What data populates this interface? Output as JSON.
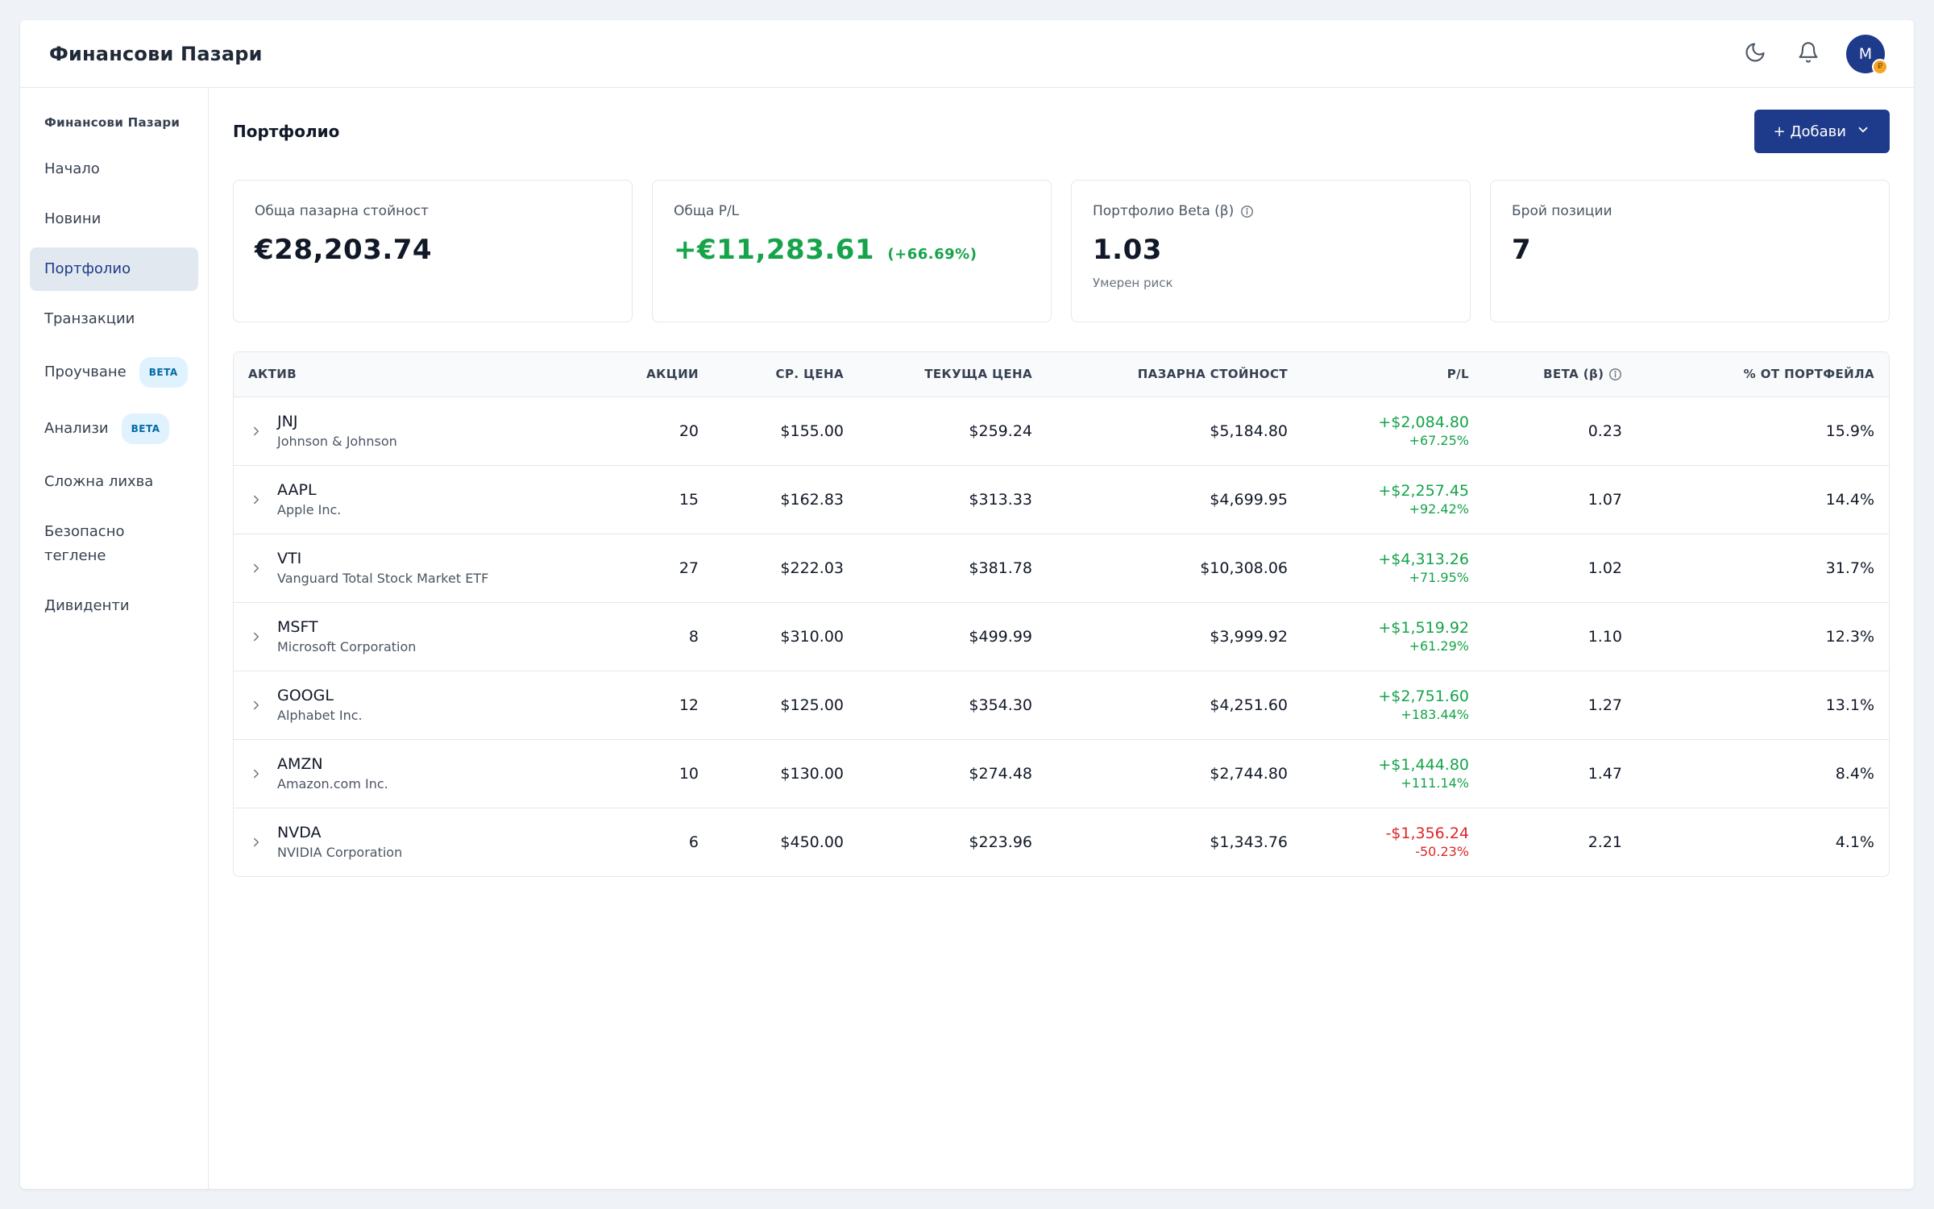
{
  "header": {
    "title": "Финансови Пазари",
    "avatar_initial": "M",
    "avatar_badge": "₽"
  },
  "sidebar": {
    "heading": "Финансови Пазари",
    "items": [
      {
        "label": "Начало",
        "badge": ""
      },
      {
        "label": "Новини",
        "badge": ""
      },
      {
        "label": "Портфолио",
        "badge": ""
      },
      {
        "label": "Транзакции",
        "badge": ""
      },
      {
        "label": "Проучване",
        "badge": "BETA"
      },
      {
        "label": "Анализи",
        "badge": "BETA"
      },
      {
        "label": "Сложна лихва",
        "badge": ""
      },
      {
        "label": "Безопасно теглене",
        "badge": ""
      },
      {
        "label": "Дивиденти",
        "badge": ""
      }
    ],
    "active_index": 2
  },
  "main": {
    "title": "Портфолио",
    "add_button": "+ Добави"
  },
  "cards": {
    "market_value": {
      "label": "Обща пазарна стойност",
      "value": "€28,203.74"
    },
    "pl": {
      "label": "Обща P/L",
      "value": "+€11,283.61",
      "sub": "(+66.69%)"
    },
    "beta": {
      "label": "Портфолио Beta (β)",
      "value": "1.03",
      "note": "Умерен риск"
    },
    "positions": {
      "label": "Брой позиции",
      "value": "7"
    }
  },
  "table": {
    "headers": {
      "asset": "АКТИВ",
      "shares": "АКЦИИ",
      "avg_price": "СР. ЦЕНА",
      "current_price": "ТЕКУЩА ЦЕНА",
      "market_value": "ПАЗАРНА СТОЙНОСТ",
      "pl": "P/L",
      "beta": "BETA (β)",
      "portfolio_pct": "% ОТ ПОРТФЕЙЛА"
    },
    "rows": [
      {
        "ticker": "JNJ",
        "name": "Johnson & Johnson",
        "shares": "20",
        "avg": "$155.00",
        "current": "$259.24",
        "value": "$5,184.80",
        "pl": "+$2,084.80",
        "pl_pct": "+67.25%",
        "positive": true,
        "beta": "0.23",
        "pct": "15.9%"
      },
      {
        "ticker": "AAPL",
        "name": "Apple Inc.",
        "shares": "15",
        "avg": "$162.83",
        "current": "$313.33",
        "value": "$4,699.95",
        "pl": "+$2,257.45",
        "pl_pct": "+92.42%",
        "positive": true,
        "beta": "1.07",
        "pct": "14.4%"
      },
      {
        "ticker": "VTI",
        "name": "Vanguard Total Stock Market ETF",
        "shares": "27",
        "avg": "$222.03",
        "current": "$381.78",
        "value": "$10,308.06",
        "pl": "+$4,313.26",
        "pl_pct": "+71.95%",
        "positive": true,
        "beta": "1.02",
        "pct": "31.7%"
      },
      {
        "ticker": "MSFT",
        "name": "Microsoft Corporation",
        "shares": "8",
        "avg": "$310.00",
        "current": "$499.99",
        "value": "$3,999.92",
        "pl": "+$1,519.92",
        "pl_pct": "+61.29%",
        "positive": true,
        "beta": "1.10",
        "pct": "12.3%"
      },
      {
        "ticker": "GOOGL",
        "name": "Alphabet Inc.",
        "shares": "12",
        "avg": "$125.00",
        "current": "$354.30",
        "value": "$4,251.60",
        "pl": "+$2,751.60",
        "pl_pct": "+183.44%",
        "positive": true,
        "beta": "1.27",
        "pct": "13.1%"
      },
      {
        "ticker": "AMZN",
        "name": "Amazon.com Inc.",
        "shares": "10",
        "avg": "$130.00",
        "current": "$274.48",
        "value": "$2,744.80",
        "pl": "+$1,444.80",
        "pl_pct": "+111.14%",
        "positive": true,
        "beta": "1.47",
        "pct": "8.4%"
      },
      {
        "ticker": "NVDA",
        "name": "NVIDIA Corporation",
        "shares": "6",
        "avg": "$450.00",
        "current": "$223.96",
        "value": "$1,343.76",
        "pl": "-$1,356.24",
        "pl_pct": "-50.23%",
        "positive": false,
        "beta": "2.21",
        "pct": "4.1%"
      }
    ]
  },
  "colors": {
    "accent": "#1e3a8a",
    "positive": "#16a34a",
    "negative": "#dc2626",
    "beta_badge": "#e0f2fe"
  },
  "icons": {
    "theme": "moon-icon",
    "notifications": "bell-icon",
    "info": "info-icon",
    "expand": "chevron-right-icon",
    "dropdown": "chevron-down-icon"
  }
}
